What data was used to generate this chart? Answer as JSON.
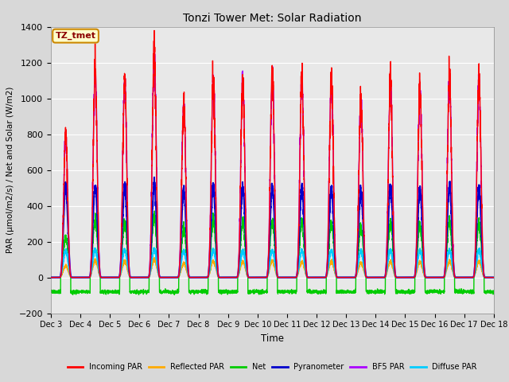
{
  "title": "Tonzi Tower Met: Solar Radiation",
  "ylabel": "PAR (μmol/m2/s) / Net and Solar (W/m2)",
  "xlabel": "Time",
  "ylim": [
    -200,
    1400
  ],
  "xlim": [
    0,
    15
  ],
  "xtick_labels": [
    "Dec 3",
    "Dec 4",
    "Dec 5",
    "Dec 6",
    "Dec 7",
    "Dec 8",
    "Dec 9",
    "Dec 10",
    "Dec 11",
    "Dec 12",
    "Dec 13",
    "Dec 14",
    "Dec 15",
    "Dec 16",
    "Dec 17",
    "Dec 18"
  ],
  "annotation_text": "TZ_tmet",
  "annotation_color": "#8b0000",
  "annotation_bg": "#ffffcc",
  "annotation_border": "#cc8800",
  "plot_bg_color": "#e8e8e8",
  "fig_bg_color": "#d8d8d8",
  "series": {
    "incoming_par": {
      "color": "#ff0000",
      "label": "Incoming PAR",
      "lw": 1.0
    },
    "reflected_par": {
      "color": "#ffaa00",
      "label": "Reflected PAR",
      "lw": 1.0
    },
    "net": {
      "color": "#00cc00",
      "label": "Net",
      "lw": 1.0
    },
    "pyranometer": {
      "color": "#0000cc",
      "label": "Pyranometer",
      "lw": 1.5
    },
    "bf5_par": {
      "color": "#aa00ff",
      "label": "BF5 PAR",
      "lw": 1.0
    },
    "diffuse_par": {
      "color": "#00ccff",
      "label": "Diffuse PAR",
      "lw": 1.5
    }
  },
  "incoming_peaks": [
    800,
    1150,
    1100,
    1250,
    980,
    1120,
    1100,
    1120,
    1100,
    1100,
    1000,
    1100,
    1050,
    1100,
    1100
  ],
  "n_days": 15,
  "pts_per_day": 288
}
